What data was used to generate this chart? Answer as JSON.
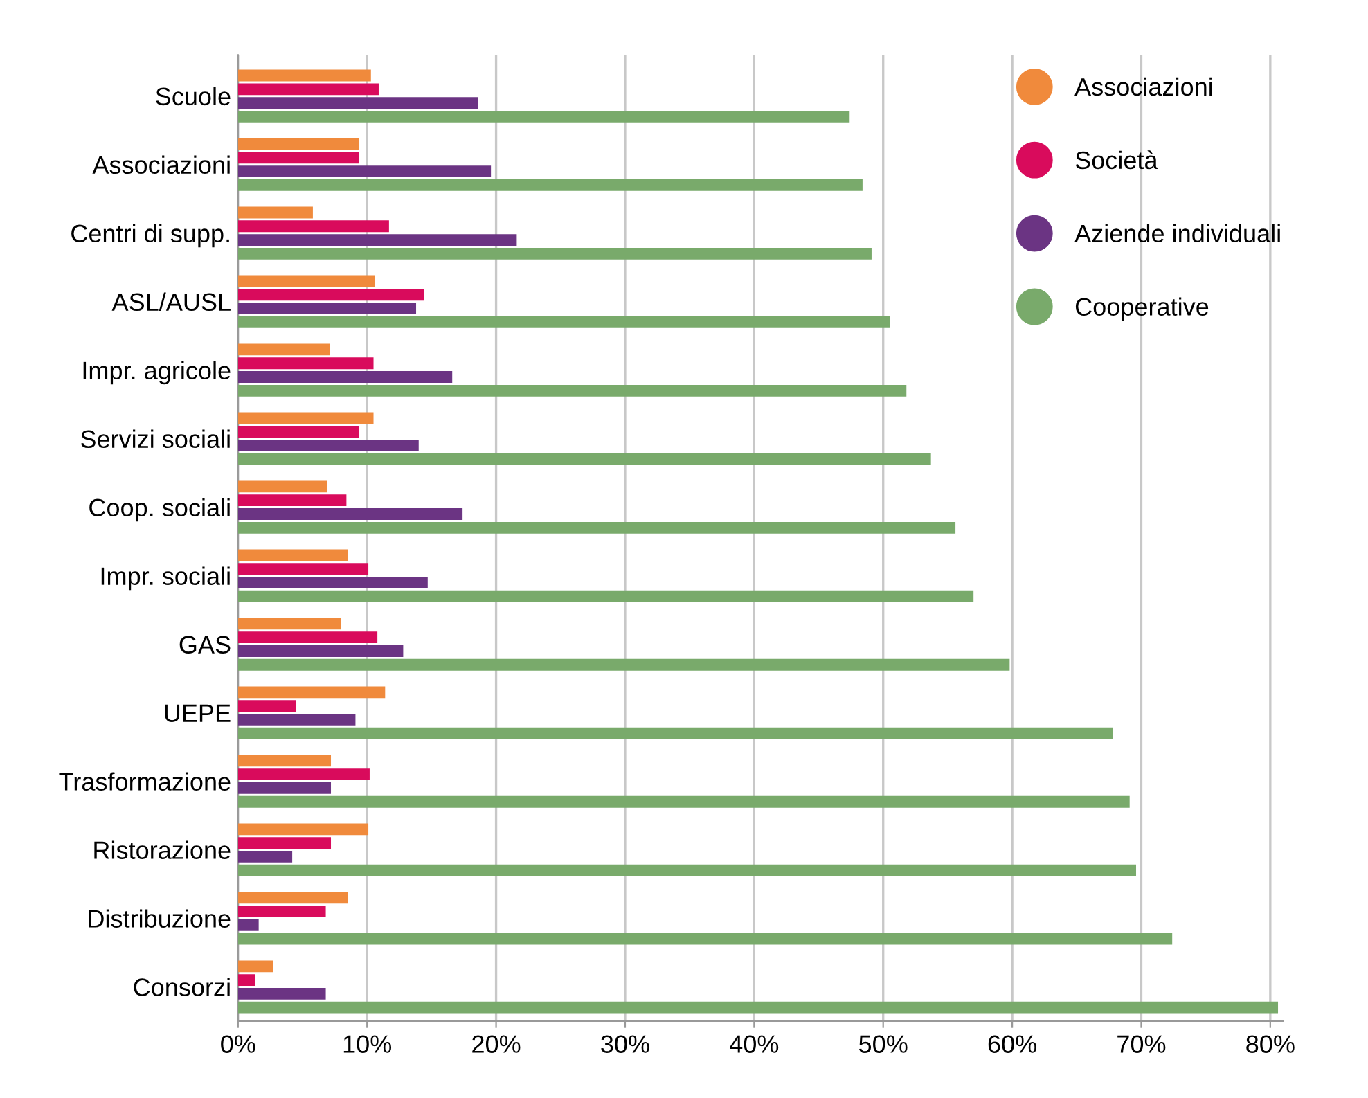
{
  "chart_data": {
    "type": "bar",
    "orientation": "horizontal",
    "categories": [
      "Scuole",
      "Associazioni",
      "Centri di supp.",
      "ASL/AUSL",
      "Impr. agricole",
      "Servizi sociali",
      "Coop. sociali",
      "Impr. sociali",
      "GAS",
      "UEPE",
      "Trasformazione",
      "Ristorazione",
      "Distribuzione",
      "Consorzi"
    ],
    "series": [
      {
        "name": "Associazioni",
        "color": "#f08a3c",
        "values": [
          10.3,
          9.4,
          5.8,
          10.6,
          7.1,
          10.5,
          6.9,
          8.5,
          8.0,
          11.4,
          7.2,
          10.1,
          8.5,
          2.7
        ]
      },
      {
        "name": "Società",
        "color": "#d90b5c",
        "values": [
          10.9,
          9.4,
          11.7,
          14.4,
          10.5,
          9.4,
          8.4,
          10.1,
          10.8,
          4.5,
          10.2,
          7.2,
          6.8,
          1.3
        ]
      },
      {
        "name": "Aziende individuali",
        "color": "#6b3483",
        "values": [
          18.6,
          19.6,
          21.6,
          13.8,
          16.6,
          14.0,
          17.4,
          14.7,
          12.8,
          9.1,
          7.2,
          4.2,
          1.6,
          6.8
        ]
      },
      {
        "name": "Cooperative",
        "color": "#79aa6b",
        "values": [
          47.4,
          48.4,
          49.1,
          50.5,
          51.8,
          53.7,
          55.6,
          57.0,
          59.8,
          67.8,
          69.1,
          69.6,
          72.4,
          80.6
        ]
      }
    ],
    "xlim": [
      0,
      81
    ],
    "xticks": [
      {
        "value": 0,
        "label": "0%"
      },
      {
        "value": 10,
        "label": "10%"
      },
      {
        "value": 20,
        "label": "20%"
      },
      {
        "value": 30,
        "label": "30%"
      },
      {
        "value": 40,
        "label": "40%"
      },
      {
        "value": 50,
        "label": "50%"
      },
      {
        "value": 60,
        "label": "60%"
      },
      {
        "value": 70,
        "label": "70%"
      },
      {
        "value": 80,
        "label": "80%"
      }
    ],
    "grid": "x",
    "legend": "top right",
    "marker": "circle"
  }
}
